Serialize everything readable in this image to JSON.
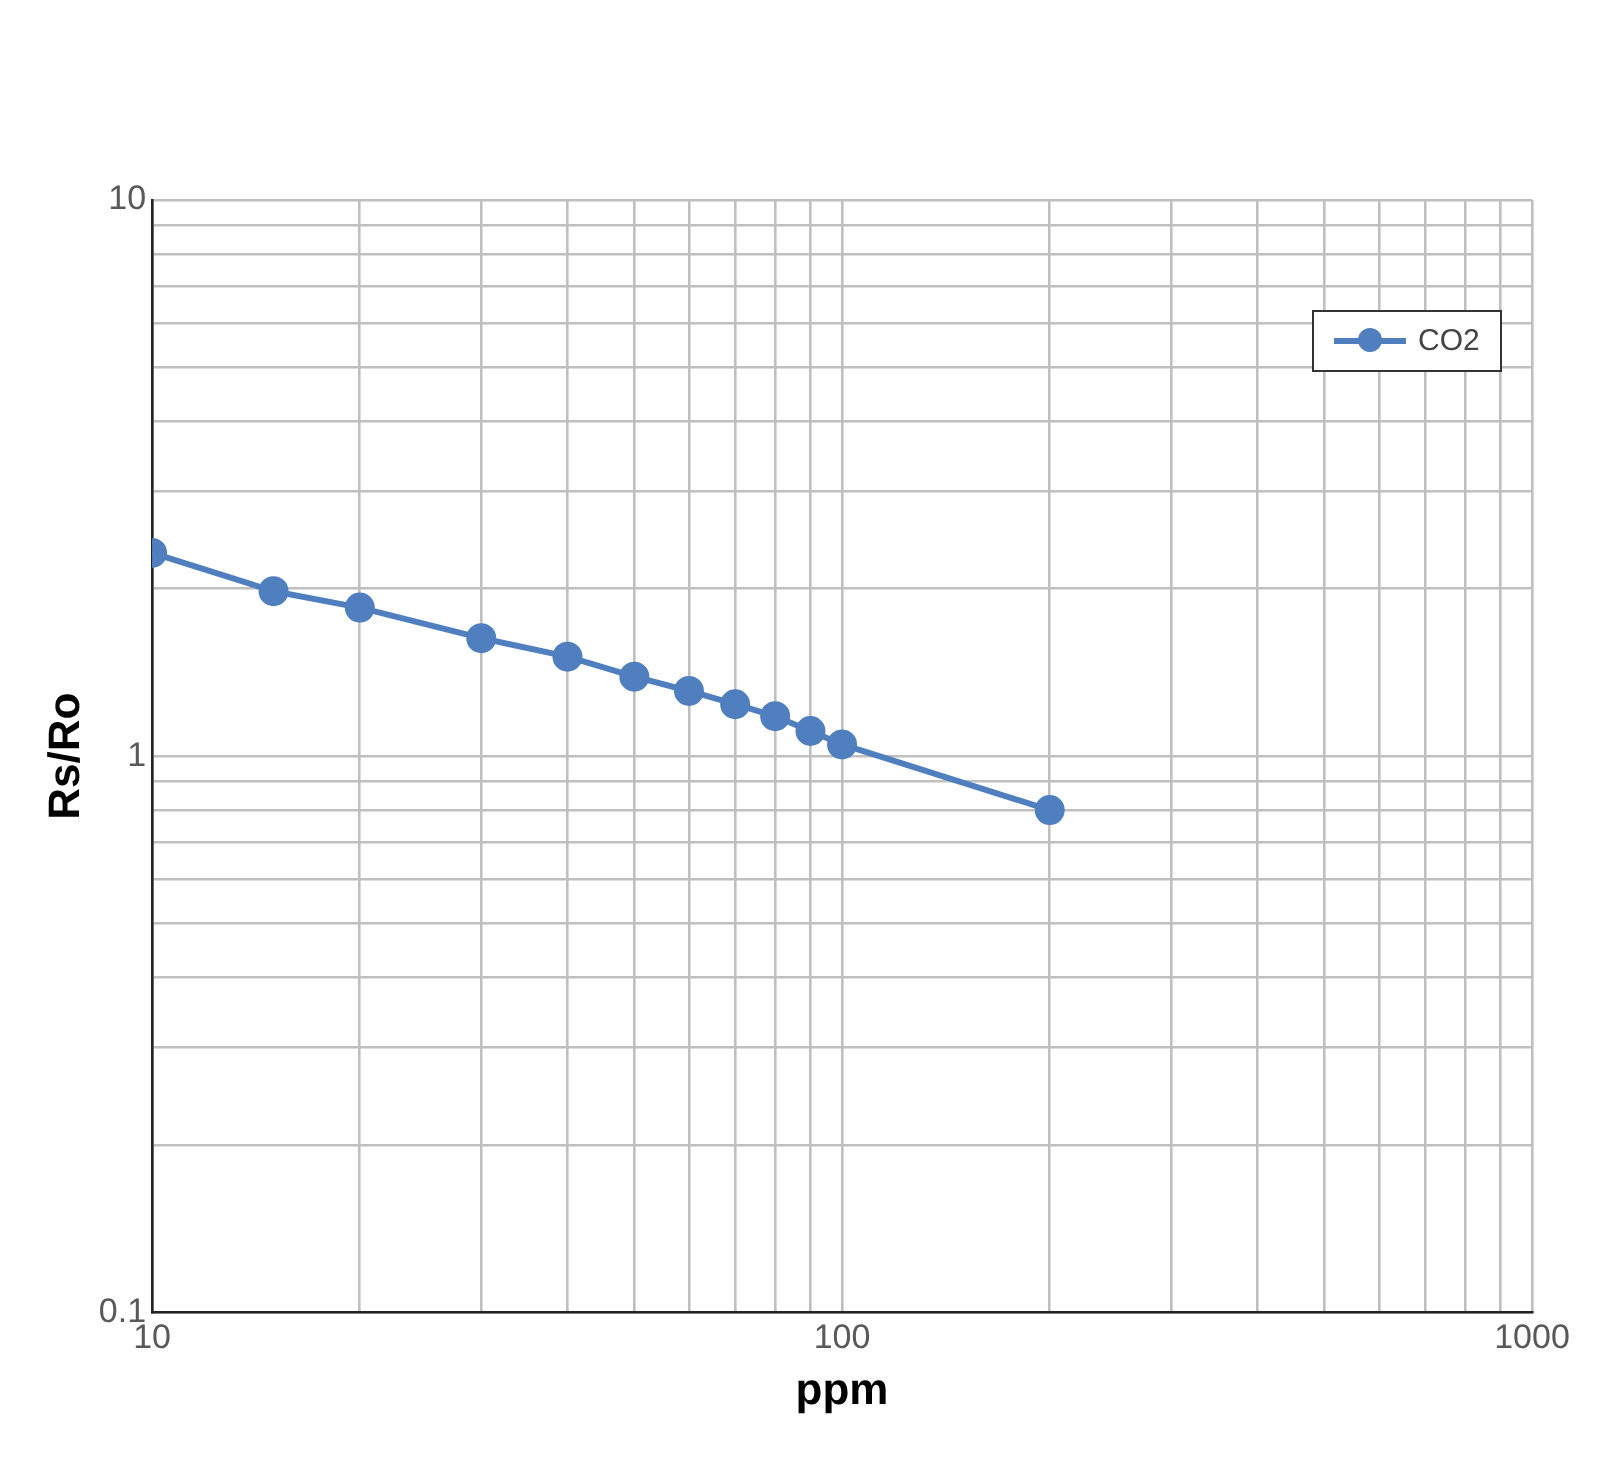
{
  "chart_data": {
    "type": "line",
    "xlabel": "ppm",
    "ylabel": "Rs/Ro",
    "log": "xy",
    "grid": true,
    "legend": "top right",
    "marker": "circle",
    "line_style": "solid",
    "x": [
      10,
      15,
      20,
      30,
      40,
      50,
      60,
      70,
      80,
      90,
      100,
      200
    ],
    "series": [
      {
        "name": "CO2",
        "color": "#4f7fbf",
        "values": [
          2.32,
          1.98,
          1.85,
          1.63,
          1.51,
          1.39,
          1.31,
          1.24,
          1.18,
          1.11,
          1.05,
          0.8
        ]
      }
    ],
    "xlim": [
      10,
      1000
    ],
    "ylim": [
      0.1,
      10
    ],
    "xticks": [
      10,
      {
        "value": 20,
        "label": null
      },
      {
        "value": 30,
        "label": null
      },
      {
        "value": 40,
        "label": null
      },
      {
        "value": 50,
        "label": null
      },
      {
        "value": 60,
        "label": null
      },
      {
        "value": 70,
        "label": null
      },
      {
        "value": 80,
        "label": null
      },
      {
        "value": 90,
        "label": null
      },
      100,
      {
        "value": 200,
        "label": null
      },
      {
        "value": 300,
        "label": null
      },
      {
        "value": 400,
        "label": null
      },
      {
        "value": 500,
        "label": null
      },
      {
        "value": 600,
        "label": null
      },
      {
        "value": 700,
        "label": null
      },
      {
        "value": 800,
        "label": null
      },
      {
        "value": 900,
        "label": null
      },
      1000
    ],
    "yticks": [
      0.1,
      {
        "value": 0.2,
        "label": null
      },
      {
        "value": 0.3,
        "label": null
      },
      {
        "value": 0.4,
        "label": null
      },
      {
        "value": 0.5,
        "label": null
      },
      {
        "value": 0.6,
        "label": null
      },
      {
        "value": 0.7,
        "label": null
      },
      {
        "value": 0.8,
        "label": null
      },
      {
        "value": 0.9,
        "label": null
      },
      1,
      {
        "value": 2,
        "label": null
      },
      {
        "value": 3,
        "label": null
      },
      {
        "value": 4,
        "label": null
      },
      {
        "value": 5,
        "label": null
      },
      {
        "value": 6,
        "label": null
      },
      {
        "value": 7,
        "label": null
      },
      {
        "value": 8,
        "label": null
      },
      {
        "value": 9,
        "label": null
      },
      10
    ]
  }
}
